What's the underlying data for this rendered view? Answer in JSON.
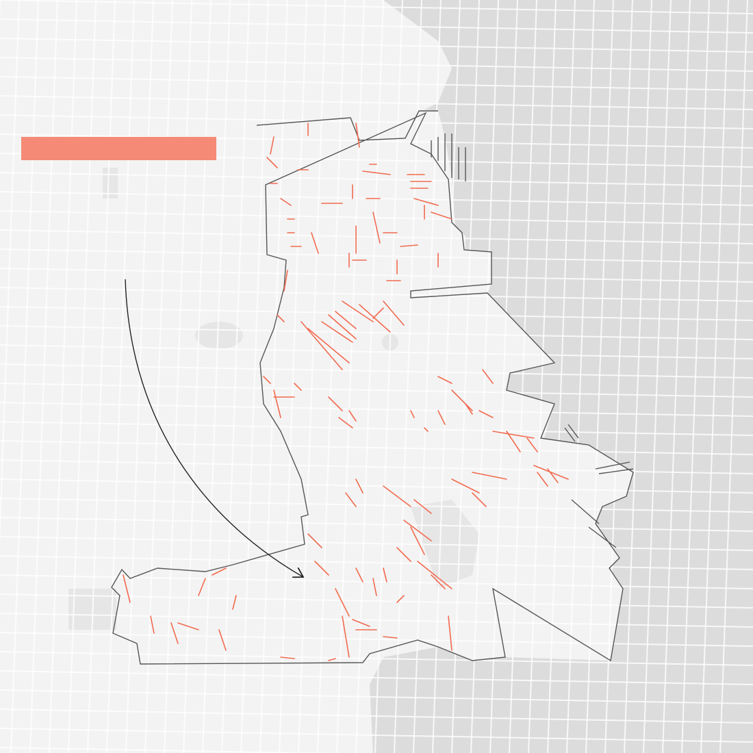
{
  "map": {
    "colors": {
      "water": "#dcdcdc",
      "land": "#f3f3f3",
      "park": "#e9e9e9",
      "street": "#ffffff",
      "district_outline": "#555555",
      "highlight_segments": "#f26a4f",
      "legend_bar": "#f58a76",
      "arrow": "#222222"
    },
    "features": [
      "district-boundary",
      "highlighted-street-segments",
      "callout-arrow",
      "legend-bar"
    ]
  }
}
